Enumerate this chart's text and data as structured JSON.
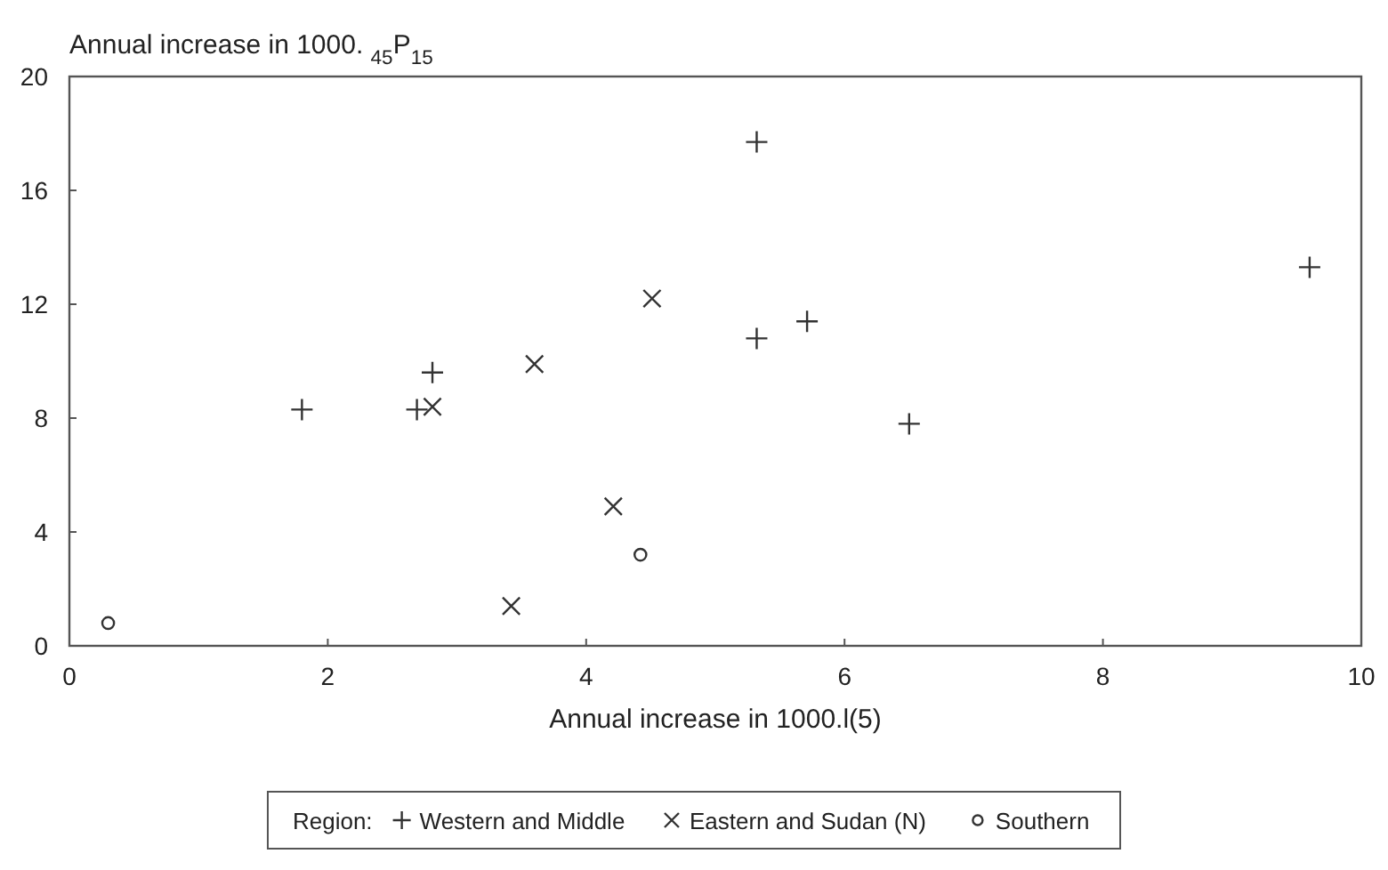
{
  "chart_data": {
    "type": "scatter",
    "title": "Annual increase in 1000. $_{45}$P$_{15}$",
    "xlabel": "Annual increase in 1000.l(5)",
    "legend_title": "Region:",
    "legend": "bottom",
    "grid": false,
    "xlim": [
      0,
      10
    ],
    "xticks": [
      0,
      2,
      4,
      6,
      8,
      10
    ],
    "ylim": [
      0,
      20
    ],
    "yticks": [
      0,
      4,
      8,
      12,
      16,
      20
    ],
    "series": [
      {
        "name": "Western and Middle",
        "color": "#333333",
        "marker": "plus",
        "x": [
          1.8,
          2.69,
          2.81,
          5.32,
          5.32,
          5.71,
          6.5,
          9.6
        ],
        "values": [
          8.3,
          8.3,
          9.6,
          17.7,
          10.8,
          11.4,
          7.8,
          13.3
        ]
      },
      {
        "name": "Eastern and Sudan (N)",
        "color": "#333333",
        "marker": "cross",
        "x": [
          2.81,
          3.6,
          4.51,
          4.21,
          3.42
        ],
        "values": [
          8.4,
          9.9,
          12.2,
          4.9,
          1.4
        ]
      },
      {
        "name": "Southern",
        "color": "#333333",
        "marker": "circle",
        "x": [
          4.42,
          0.3
        ],
        "values": [
          3.2,
          0.8
        ]
      }
    ]
  }
}
